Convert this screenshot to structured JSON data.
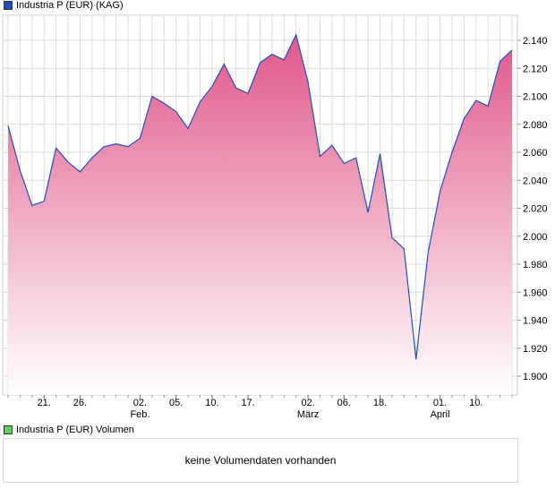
{
  "colors": {
    "line": "#1f4fbf",
    "fill_top": "#e0588a",
    "fill_bottom": "#ffffff",
    "grid": "#dcdcdc",
    "vol_swatch": "#5fcf5f"
  },
  "legend": {
    "price_label": "Industria P (EUR) (KAG)",
    "volume_label": "Industria P (EUR) Volumen"
  },
  "volume": {
    "message": "keine Volumendaten vorhanden"
  },
  "chart_data": {
    "type": "area",
    "title": "Industria P (EUR) (KAG)",
    "xlabel": "",
    "ylabel": "",
    "ylim": [
      1.886,
      2.16
    ],
    "y_ticks": [
      "2.140",
      "2.120",
      "2.100",
      "2.080",
      "2.060",
      "2.040",
      "2.020",
      "2.000",
      "1.980",
      "1.960",
      "1.940",
      "1.920",
      "1.900"
    ],
    "values": [
      2.079,
      2.047,
      2.022,
      2.025,
      2.063,
      2.053,
      2.046,
      2.056,
      2.064,
      2.066,
      2.064,
      2.07,
      2.1,
      2.095,
      2.089,
      2.077,
      2.096,
      2.107,
      2.123,
      2.106,
      2.102,
      2.124,
      2.13,
      2.126,
      2.144,
      2.11,
      2.057,
      2.065,
      2.052,
      2.056,
      2.017,
      2.059,
      1.999,
      1.991,
      1.912,
      1.988,
      2.032,
      2.06,
      2.084,
      2.097,
      2.093,
      2.125,
      2.133
    ],
    "x_ticks": [
      {
        "index": 3,
        "label": "21.",
        "sub": ""
      },
      {
        "index": 6,
        "label": "26.",
        "sub": ""
      },
      {
        "index": 11,
        "label": "02.",
        "sub": "Feb."
      },
      {
        "index": 14,
        "label": "05.",
        "sub": ""
      },
      {
        "index": 17,
        "label": "10.",
        "sub": ""
      },
      {
        "index": 20,
        "label": "17.",
        "sub": ""
      },
      {
        "index": 25,
        "label": "02.",
        "sub": "März"
      },
      {
        "index": 28,
        "label": "06.",
        "sub": ""
      },
      {
        "index": 31,
        "label": "18.",
        "sub": ""
      },
      {
        "index": 36,
        "label": "01.",
        "sub": "April"
      },
      {
        "index": 39,
        "label": "10.",
        "sub": ""
      }
    ],
    "grid": true,
    "legend_position": "top-left"
  }
}
